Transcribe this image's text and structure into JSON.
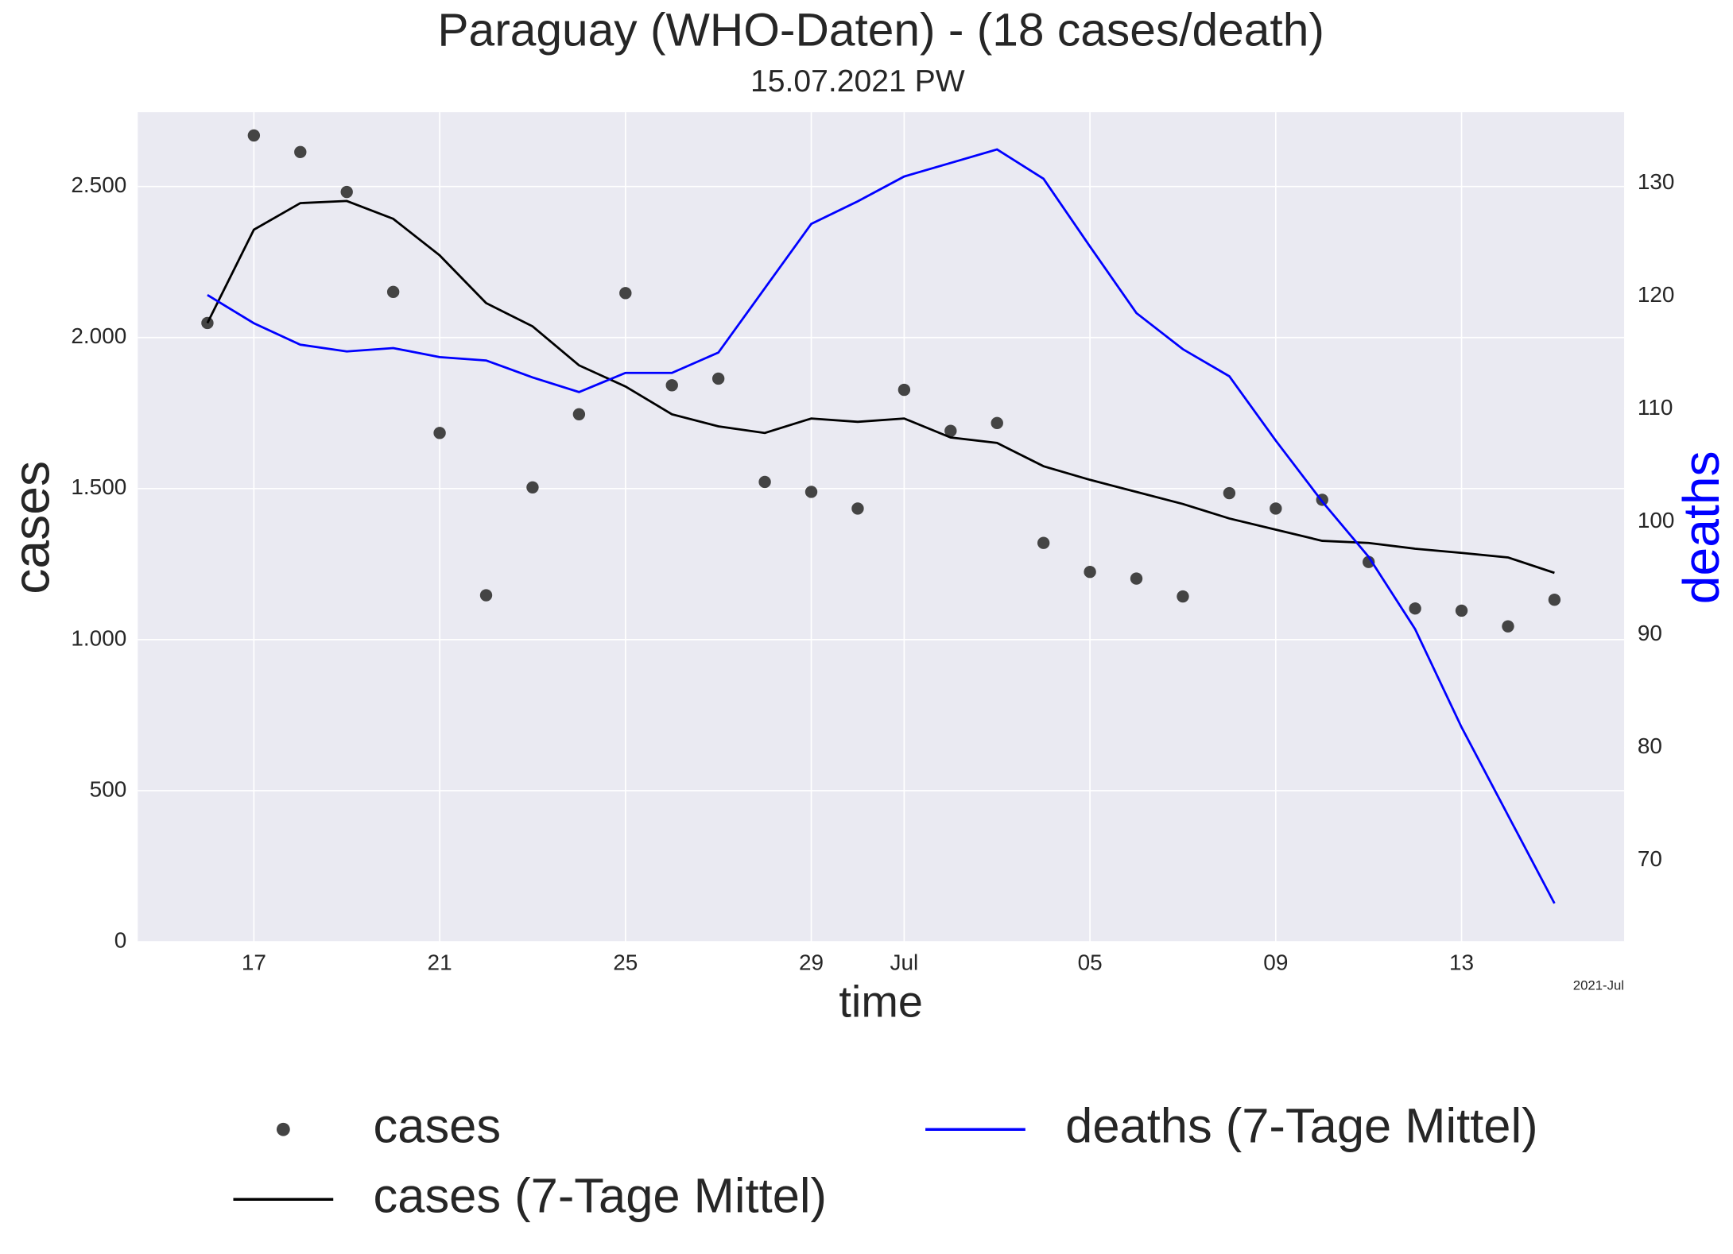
{
  "chart_data": {
    "type": "line",
    "title": "Paraguay (WHO-Daten) - (18 cases/death)",
    "subtitle": "15.07.2021 PW",
    "x_label": "time",
    "y_label": "cases",
    "y2_label": "deaths",
    "x_offset_label": "2021-Jul",
    "x": [
      "2021-06-16",
      "2021-06-17",
      "2021-06-18",
      "2021-06-19",
      "2021-06-20",
      "2021-06-21",
      "2021-06-22",
      "2021-06-23",
      "2021-06-24",
      "2021-06-25",
      "2021-06-26",
      "2021-06-27",
      "2021-06-28",
      "2021-06-29",
      "2021-06-30",
      "2021-07-01",
      "2021-07-02",
      "2021-07-03",
      "2021-07-04",
      "2021-07-05",
      "2021-07-06",
      "2021-07-07",
      "2021-07-08",
      "2021-07-09",
      "2021-07-10",
      "2021-07-11",
      "2021-07-12",
      "2021-07-13",
      "2021-07-14",
      "2021-07-15"
    ],
    "series": [
      {
        "name": "cases",
        "style": "markers",
        "color": "#444444",
        "values": [
          2048,
          2669,
          2614,
          2482,
          2151,
          1684,
          1147,
          1504,
          1746,
          2147,
          1842,
          1864,
          1522,
          1489,
          1434,
          1827,
          1691,
          1717,
          1320,
          1224,
          1202,
          1143,
          1485,
          1434,
          1463,
          1257,
          1103,
          1096,
          1044,
          1132
        ]
      },
      {
        "name": "cases (7-Tage Mittel)",
        "style": "line",
        "color": "#000000",
        "values": [
          2048,
          2357,
          2445,
          2452,
          2393,
          2272,
          2114,
          2037,
          1908,
          1838,
          1746,
          1706,
          1684,
          1732,
          1721,
          1732,
          1669,
          1651,
          1574,
          1529,
          1489,
          1449,
          1401,
          1364,
          1327,
          1320,
          1301,
          1287,
          1272,
          1221
        ]
      },
      {
        "name": "deaths (7-Tage Mittel)",
        "style": "line",
        "color": "#0000ff",
        "axis": "y2",
        "values": [
          120.1,
          117.6,
          115.7,
          115.1,
          115.4,
          114.6,
          114.3,
          112.8,
          111.5,
          113.2,
          113.2,
          115.0,
          120.7,
          126.4,
          128.4,
          130.6,
          131.8,
          133.0,
          130.4,
          124.4,
          118.5,
          115.3,
          112.9,
          107.2,
          101.8,
          96.9,
          90.5,
          81.8,
          74.0,
          66.2
        ]
      }
    ],
    "xlim": [
      "2021-06-14T12:00:00Z",
      "2021-07-16T12:00:00Z"
    ],
    "xticks": [
      {
        "value": "2021-06-17",
        "label": "17"
      },
      {
        "value": "2021-06-21",
        "label": "21"
      },
      {
        "value": "2021-06-25",
        "label": "25"
      },
      {
        "value": "2021-06-29",
        "label": "29"
      },
      {
        "value": "2021-07-01",
        "label": "Jul"
      },
      {
        "value": "2021-07-05",
        "label": "05"
      },
      {
        "value": "2021-07-09",
        "label": "09"
      },
      {
        "value": "2021-07-13",
        "label": "13"
      }
    ],
    "ylim": [
      0,
      2746
    ],
    "yticks": [
      0,
      500,
      {
        "value": 1000,
        "label": "1.000"
      },
      {
        "value": 1500,
        "label": "1.500"
      },
      {
        "value": 2000,
        "label": "2.000"
      },
      {
        "value": 2500,
        "label": "2.500"
      }
    ],
    "y2lim": [
      62.8,
      136.3
    ],
    "y2ticks": [
      70,
      80,
      90,
      100,
      110,
      120,
      130
    ],
    "y2_label_color": "#0000ff",
    "grid": true,
    "legend": "lower center"
  }
}
